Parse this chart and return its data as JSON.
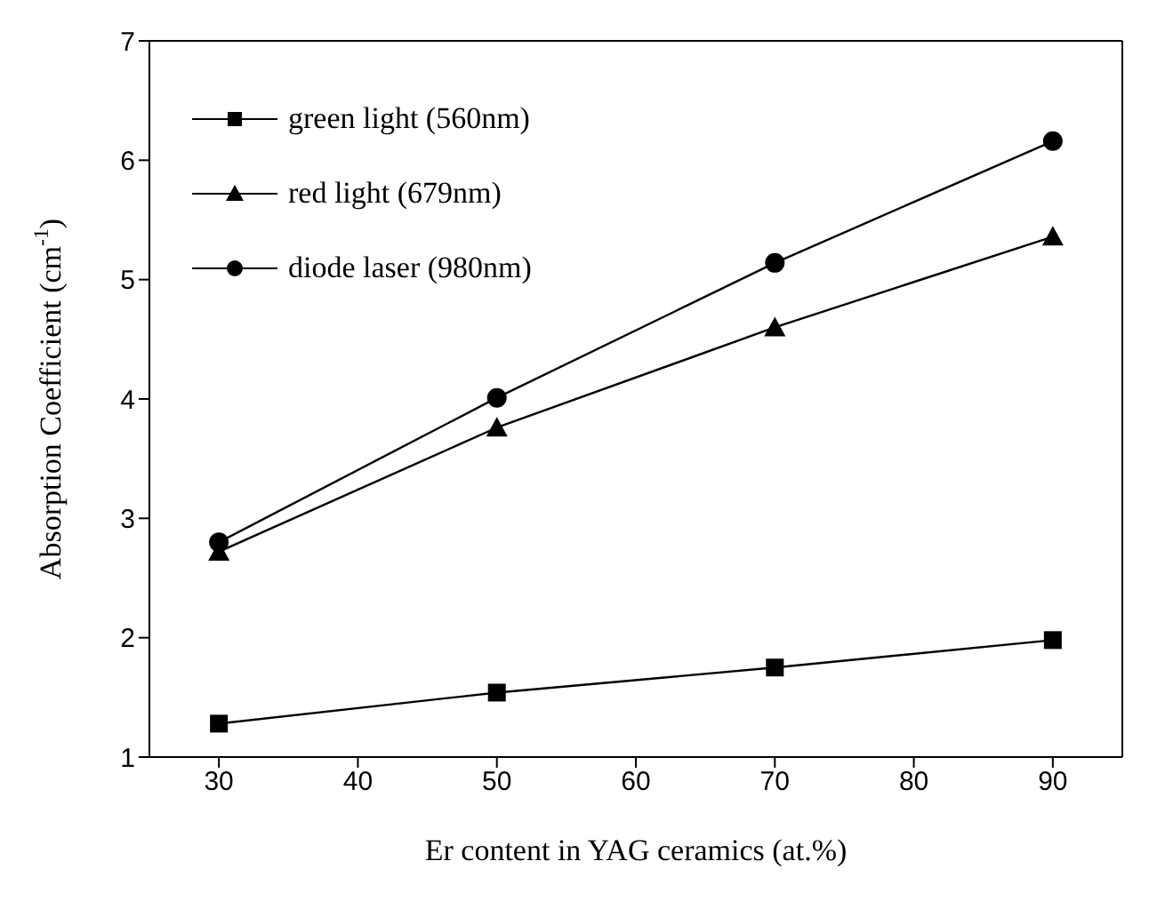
{
  "chart_data": {
    "type": "line",
    "xlabel": "Er content in YAG ceramics (at.%)",
    "ylabel": "Absorption Coefficient (cm$^{-1}$)",
    "x": [
      30,
      50,
      70,
      90
    ],
    "series": [
      {
        "name": "green light (560nm)",
        "color": "#000000",
        "marker": "square",
        "values": [
          1.28,
          1.54,
          1.75,
          1.98
        ]
      },
      {
        "name": "red light (679nm)",
        "color": "#000000",
        "marker": "triangle",
        "values": [
          2.72,
          3.76,
          4.6,
          5.36
        ]
      },
      {
        "name": "diode laser (980nm)",
        "color": "#000000",
        "marker": "circle",
        "values": [
          2.8,
          4.01,
          5.14,
          6.16
        ]
      }
    ],
    "xlim": [
      25,
      95
    ],
    "xticks": [
      30,
      40,
      50,
      60,
      70,
      80,
      90
    ],
    "ylim": [
      1,
      7
    ],
    "yticks": [
      1,
      2,
      3,
      4,
      5,
      6,
      7
    ],
    "grid": false,
    "legend": "top left",
    "line_style": "solid"
  }
}
